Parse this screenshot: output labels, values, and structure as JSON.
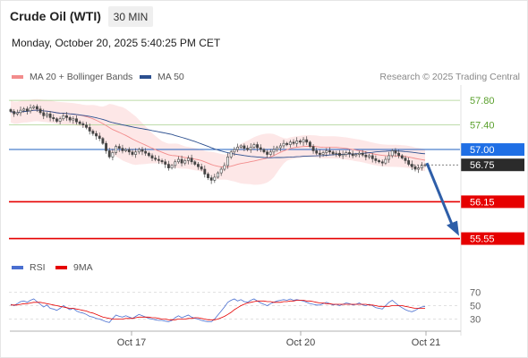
{
  "header": {
    "instrument": "Crude Oil (WTI)",
    "timeframe": "30 MIN",
    "timestamp": "Monday, October 20, 2025 5:40:25 PM CET"
  },
  "legend": {
    "bollinger_label": "MA 20 + Bollinger Bands",
    "ma50_label": "MA 50",
    "source": "Research © 2025 Trading Central",
    "rsi_label": "RSI",
    "rsi_ma_label": "9MA"
  },
  "colors": {
    "bollinger": "#f28c8c",
    "band_fill": "#fde3e3",
    "ma50": "#2b4f8f",
    "candle": "#444444",
    "resistance": "#a8d08d",
    "support": "#e60000",
    "pivot": "#1f5fbf",
    "current": "#2b2b2b",
    "arrow": "#2e5ea8",
    "rsi": "#4a6fd0",
    "rsi_ma": "#e60000"
  },
  "chart_data": [
    {
      "type": "candlestick",
      "title": "Crude Oil (WTI)",
      "timeframe": "30 MIN",
      "x_ticks": [
        "Oct 17",
        "Oct 20",
        "Oct 21"
      ],
      "ylim": [
        55.5,
        58.05
      ],
      "levels": [
        {
          "label": "57.80",
          "value": 57.8,
          "kind": "resistance"
        },
        {
          "label": "57.40",
          "value": 57.4,
          "kind": "resistance"
        },
        {
          "label": "57.00",
          "value": 57.0,
          "kind": "pivot"
        },
        {
          "label": "56.75",
          "value": 56.75,
          "kind": "current"
        },
        {
          "label": "56.15",
          "value": 56.15,
          "kind": "support"
        },
        {
          "label": "55.55",
          "value": 55.55,
          "kind": "support"
        }
      ],
      "close": [
        57.62,
        57.58,
        57.6,
        57.64,
        57.66,
        57.63,
        57.68,
        57.7,
        57.66,
        57.6,
        57.55,
        57.58,
        57.52,
        57.5,
        57.46,
        57.5,
        57.55,
        57.52,
        57.48,
        57.5,
        57.45,
        57.42,
        57.4,
        57.36,
        57.3,
        57.26,
        57.22,
        57.18,
        57.1,
        56.98,
        56.88,
        56.95,
        57.05,
        57.02,
        56.98,
        57.0,
        56.96,
        56.92,
        56.96,
        57.0,
        56.97,
        56.94,
        56.9,
        56.86,
        56.84,
        56.82,
        56.8,
        56.76,
        56.7,
        56.74,
        56.8,
        56.84,
        56.78,
        56.82,
        56.86,
        56.8,
        56.76,
        56.72,
        56.68,
        56.6,
        56.54,
        56.5,
        56.55,
        56.62,
        56.68,
        56.74,
        56.88,
        56.96,
        57.0,
        57.04,
        57.06,
        57.02,
        57.0,
        57.04,
        57.08,
        57.03,
        57.0,
        56.96,
        56.92,
        56.96,
        57.0,
        57.03,
        57.06,
        57.1,
        57.08,
        57.12,
        57.1,
        57.14,
        57.12,
        57.16,
        57.12,
        57.05,
        56.98,
        56.94,
        56.92,
        56.95,
        56.98,
        56.96,
        56.93,
        56.94,
        56.9,
        56.92,
        56.95,
        56.93,
        56.9,
        56.92,
        56.94,
        56.91,
        56.88,
        56.9,
        56.85,
        56.82,
        56.8,
        56.78,
        56.84,
        56.9,
        56.98,
        56.94,
        56.9,
        56.86,
        56.82,
        56.76,
        56.72,
        56.68,
        56.7,
        56.74,
        56.75
      ]
    },
    {
      "type": "line",
      "title": "RSI",
      "series": [
        {
          "name": "RSI"
        },
        {
          "name": "9MA"
        }
      ],
      "y_ticks": [
        70,
        50,
        30
      ],
      "ylim": [
        20,
        80
      ],
      "rsi": [
        52,
        50,
        53,
        56,
        57,
        55,
        58,
        60,
        56,
        52,
        48,
        51,
        46,
        45,
        43,
        46,
        50,
        47,
        44,
        46,
        42,
        40,
        39,
        37,
        34,
        33,
        31,
        30,
        28,
        26,
        25,
        31,
        36,
        34,
        33,
        35,
        33,
        31,
        34,
        37,
        35,
        33,
        31,
        30,
        29,
        28,
        28,
        27,
        26,
        28,
        32,
        35,
        32,
        34,
        36,
        33,
        31,
        30,
        28,
        27,
        26,
        26,
        30,
        36,
        42,
        48,
        55,
        58,
        60,
        57,
        59,
        56,
        55,
        58,
        60,
        57,
        54,
        52,
        50,
        53,
        55,
        57,
        58,
        59,
        58,
        60,
        58,
        59,
        58,
        57,
        55,
        53,
        52,
        51,
        51,
        53,
        55,
        53,
        51,
        52,
        50,
        52,
        54,
        53,
        51,
        52,
        54,
        51,
        50,
        52,
        50,
        47,
        46,
        45,
        50,
        55,
        58,
        54,
        50,
        47,
        44,
        42,
        41,
        43,
        46,
        48,
        49
      ],
      "rsi_ma": [
        51,
        51,
        51,
        52,
        53,
        53,
        54,
        55,
        55,
        55,
        54,
        53,
        52,
        51,
        50,
        49,
        48,
        47,
        46,
        46,
        45,
        44,
        43,
        42,
        40,
        39,
        37,
        35,
        33,
        32,
        31,
        30,
        30,
        30,
        30,
        31,
        31,
        31,
        32,
        33,
        33,
        33,
        33,
        32,
        32,
        31,
        30,
        30,
        29,
        29,
        29,
        30,
        30,
        30,
        31,
        31,
        32,
        32,
        31,
        30,
        29,
        29,
        29,
        30,
        32,
        34,
        37,
        40,
        44,
        47,
        50,
        52,
        54,
        55,
        56,
        57,
        57,
        57,
        56,
        56,
        55,
        55,
        55,
        56,
        56,
        57,
        57,
        58,
        58,
        58,
        57,
        57,
        56,
        55,
        54,
        54,
        53,
        53,
        52,
        52,
        52,
        52,
        52,
        52,
        52,
        52,
        52,
        52,
        52,
        51,
        51,
        50,
        49,
        49,
        49,
        49,
        50,
        50,
        50,
        50,
        49,
        48,
        47,
        46,
        46,
        46,
        46
      ]
    }
  ]
}
